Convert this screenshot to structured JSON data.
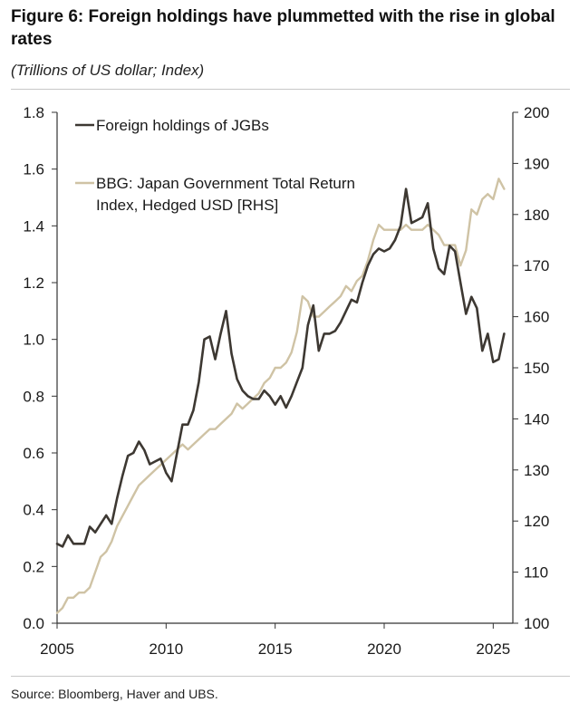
{
  "header": {
    "title": "Figure 6: Foreign holdings have plummetted with the rise in global rates",
    "subtitle": "(Trillions of US dollar; Index)"
  },
  "footer": {
    "source": "Source: Bloomberg, Haver and UBS."
  },
  "colors": {
    "series1": "#3d3832",
    "series2": "#cfc3a5",
    "axis": "#333333"
  },
  "chart_data": {
    "type": "line",
    "title": "Figure 6: Foreign holdings have plummetted with the rise in global rates",
    "xlabel": "",
    "ylabel": "Trillions of US dollar",
    "y2label": "Index",
    "xlim": [
      2005,
      2025.9
    ],
    "ylim": [
      0.0,
      1.8
    ],
    "y2lim": [
      100,
      200
    ],
    "grid": false,
    "legend_position": "top-left",
    "x_tick_labels": [
      "2005",
      "2010",
      "2015",
      "2020",
      "2025"
    ],
    "y_tick_labels": [
      "0.0",
      "0.2",
      "0.4",
      "0.6",
      "0.8",
      "1.0",
      "1.2",
      "1.4",
      "1.6",
      "1.8"
    ],
    "y2_tick_labels": [
      "100",
      "110",
      "120",
      "130",
      "140",
      "150",
      "160",
      "170",
      "180",
      "190",
      "200"
    ],
    "series": [
      {
        "name": "Foreign holdings of JGBs",
        "axis": "left",
        "x": [
          2005.0,
          2005.25,
          2005.5,
          2005.75,
          2006.0,
          2006.25,
          2006.5,
          2006.75,
          2007.0,
          2007.25,
          2007.5,
          2007.75,
          2008.0,
          2008.25,
          2008.5,
          2008.75,
          2009.0,
          2009.25,
          2009.5,
          2009.75,
          2010.0,
          2010.25,
          2010.5,
          2010.75,
          2011.0,
          2011.25,
          2011.5,
          2011.75,
          2012.0,
          2012.25,
          2012.5,
          2012.75,
          2013.0,
          2013.25,
          2013.5,
          2013.75,
          2014.0,
          2014.25,
          2014.5,
          2014.75,
          2015.0,
          2015.25,
          2015.5,
          2015.75,
          2016.0,
          2016.25,
          2016.5,
          2016.75,
          2017.0,
          2017.25,
          2017.5,
          2017.75,
          2018.0,
          2018.25,
          2018.5,
          2018.75,
          2019.0,
          2019.25,
          2019.5,
          2019.75,
          2020.0,
          2020.25,
          2020.5,
          2020.75,
          2021.0,
          2021.25,
          2021.5,
          2021.75,
          2022.0,
          2022.25,
          2022.5,
          2022.75,
          2023.0,
          2023.25,
          2023.5,
          2023.75,
          2024.0,
          2024.25,
          2024.5,
          2024.75,
          2025.0,
          2025.25,
          2025.5
        ],
        "values": [
          0.28,
          0.27,
          0.31,
          0.28,
          0.28,
          0.28,
          0.34,
          0.32,
          0.35,
          0.38,
          0.35,
          0.44,
          0.52,
          0.59,
          0.6,
          0.64,
          0.61,
          0.56,
          0.57,
          0.58,
          0.53,
          0.5,
          0.6,
          0.7,
          0.7,
          0.75,
          0.85,
          1.0,
          1.01,
          0.93,
          1.02,
          1.1,
          0.95,
          0.86,
          0.82,
          0.8,
          0.79,
          0.79,
          0.82,
          0.8,
          0.77,
          0.8,
          0.76,
          0.8,
          0.85,
          0.9,
          1.05,
          1.12,
          0.96,
          1.02,
          1.02,
          1.03,
          1.06,
          1.1,
          1.14,
          1.13,
          1.2,
          1.26,
          1.3,
          1.32,
          1.31,
          1.32,
          1.35,
          1.4,
          1.53,
          1.41,
          1.42,
          1.43,
          1.48,
          1.32,
          1.25,
          1.23,
          1.33,
          1.31,
          1.2,
          1.09,
          1.15,
          1.11,
          0.96,
          1.02,
          0.92,
          0.93,
          1.02
        ]
      },
      {
        "name": "BBG: Japan Government Total Return Index, Hedged USD [RHS]",
        "axis": "right",
        "x": [
          2005.0,
          2005.25,
          2005.5,
          2005.75,
          2006.0,
          2006.25,
          2006.5,
          2006.75,
          2007.0,
          2007.25,
          2007.5,
          2007.75,
          2008.0,
          2008.25,
          2008.5,
          2008.75,
          2009.0,
          2009.25,
          2009.5,
          2009.75,
          2010.0,
          2010.25,
          2010.5,
          2010.75,
          2011.0,
          2011.25,
          2011.5,
          2011.75,
          2012.0,
          2012.25,
          2012.5,
          2012.75,
          2013.0,
          2013.25,
          2013.5,
          2013.75,
          2014.0,
          2014.25,
          2014.5,
          2014.75,
          2015.0,
          2015.25,
          2015.5,
          2015.75,
          2016.0,
          2016.25,
          2016.5,
          2016.75,
          2017.0,
          2017.25,
          2017.5,
          2017.75,
          2018.0,
          2018.25,
          2018.5,
          2018.75,
          2019.0,
          2019.25,
          2019.5,
          2019.75,
          2020.0,
          2020.25,
          2020.5,
          2020.75,
          2021.0,
          2021.25,
          2021.5,
          2021.75,
          2022.0,
          2022.25,
          2022.5,
          2022.75,
          2023.0,
          2023.25,
          2023.5,
          2023.75,
          2024.0,
          2024.25,
          2024.5,
          2024.75,
          2025.0,
          2025.25,
          2025.5
        ],
        "values": [
          102,
          103,
          105,
          105,
          106,
          106,
          107,
          110,
          113,
          114,
          116,
          119,
          121,
          123,
          125,
          127,
          128,
          129,
          130,
          131,
          132,
          133,
          134,
          135,
          134,
          135,
          136,
          137,
          138,
          138,
          139,
          140,
          141,
          143,
          142,
          143,
          144,
          145,
          147,
          148,
          150,
          150,
          151,
          153,
          157,
          164,
          163,
          160,
          160,
          161,
          162,
          163,
          164,
          166,
          165,
          167,
          168,
          171,
          175,
          178,
          177,
          177,
          177,
          177,
          178,
          177,
          177,
          177,
          178,
          177,
          176,
          174,
          174,
          174,
          170,
          173,
          181,
          180,
          183,
          184,
          183,
          187,
          185
        ]
      }
    ]
  }
}
